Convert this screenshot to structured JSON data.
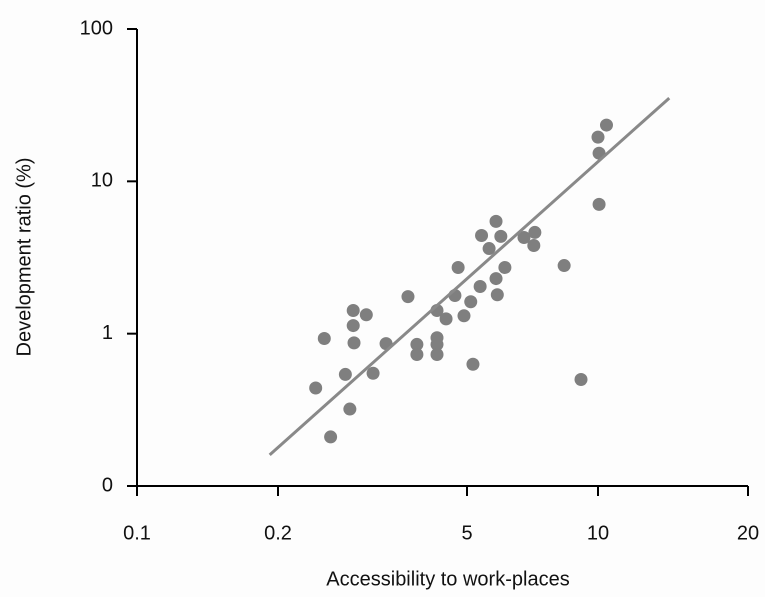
{
  "chart_data": {
    "type": "scatter",
    "x_label": "Accessibility to work-places",
    "y_label": "Development ratio (%)",
    "x_scale": "log",
    "y_scale": "log",
    "xlim": [
      0.1,
      20
    ],
    "ylim": [
      {
        "value": 0.1,
        "label": "0"
      },
      100
    ],
    "xticks": [
      0.1,
      0.2,
      5,
      10,
      20
    ],
    "yticks": [
      {
        "value": 0.1,
        "label": "0"
      },
      1,
      10,
      100
    ],
    "series": [
      {
        "color": "#7f7f7f",
        "x": [
          0.38,
          0.44,
          0.49,
          0.63,
          0.68,
          0.72,
          0.72,
          0.73,
          0.9,
          1.01,
          1.26,
          1.83,
          2.13,
          2.13,
          3.0,
          3.0,
          3.0,
          3.0,
          3.5,
          4.07,
          4.3,
          4.75,
          5.1,
          5.16,
          5.36,
          5.4,
          5.62,
          5.83,
          5.83,
          5.87,
          5.98,
          6.11,
          6.76,
          7.16,
          7.12,
          8.36,
          9.14,
          10,
          10.05,
          10.4,
          10.05
        ],
        "values": [
          0.44,
          0.93,
          0.21,
          0.54,
          0.32,
          1.42,
          1.13,
          0.87,
          1.33,
          0.55,
          0.86,
          1.75,
          0.85,
          0.73,
          1.42,
          0.94,
          0.85,
          0.73,
          1.25,
          1.78,
          2.72,
          1.31,
          1.62,
          0.63,
          2.04,
          4.41,
          3.62,
          5.46,
          2.3,
          1.8,
          4.35,
          2.72,
          4.28,
          4.62,
          3.79,
          2.8,
          0.5,
          19.5,
          15.3,
          23.4,
          7.06
        ]
      },
      {
        "type": "line",
        "color": "#898989",
        "x": [
          0.192,
          13.9
        ],
        "values": [
          0.16,
          35.2
        ]
      }
    ]
  }
}
